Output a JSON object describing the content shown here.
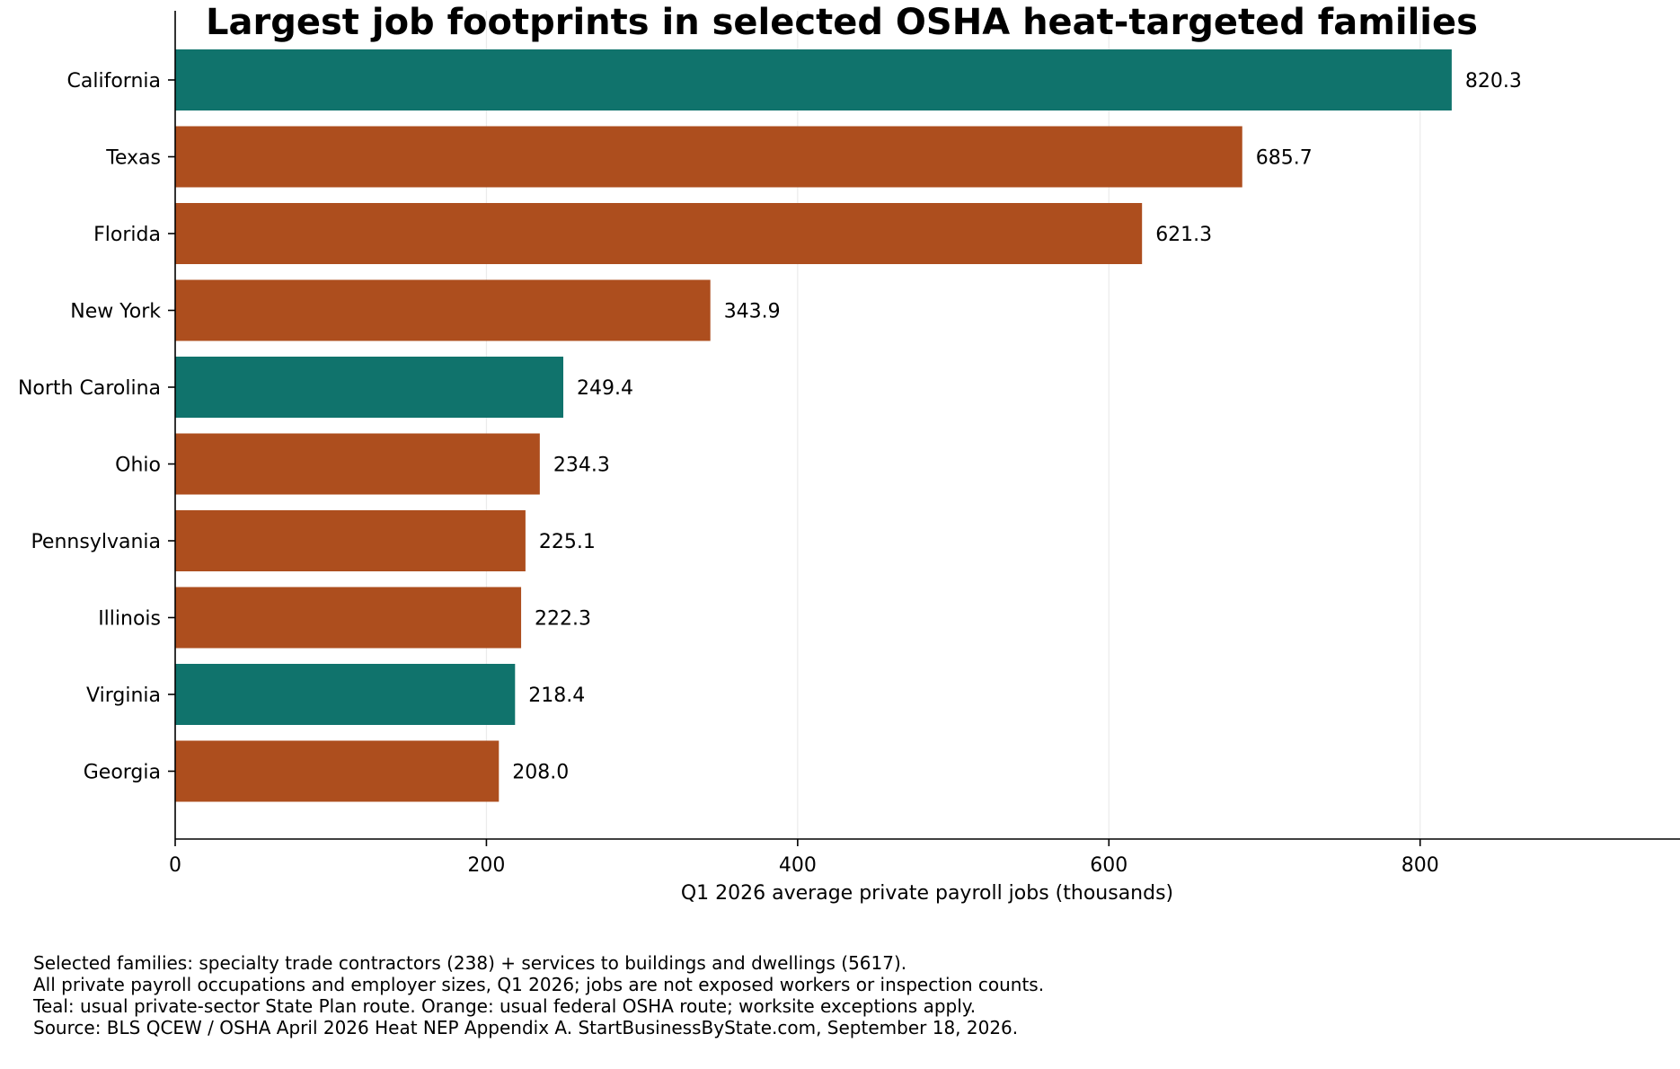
{
  "chart_data": {
    "type": "bar",
    "orientation": "horizontal",
    "title": "Largest job footprints in selected OSHA heat-targeted families",
    "xlabel": "Q1 2026 average private payroll jobs (thousands)",
    "ylabel": "",
    "categories": [
      "California",
      "Texas",
      "Florida",
      "New York",
      "North Carolina",
      "Ohio",
      "Pennsylvania",
      "Illinois",
      "Virginia",
      "Georgia"
    ],
    "values": [
      820.3,
      685.7,
      621.3,
      343.9,
      249.4,
      234.3,
      225.1,
      222.3,
      218.4,
      208.0
    ],
    "value_labels": [
      "820.3",
      "685.7",
      "621.3",
      "343.9",
      "249.4",
      "234.3",
      "225.1",
      "222.3",
      "218.4",
      "208.0"
    ],
    "route": [
      "state",
      "federal",
      "federal",
      "federal",
      "state",
      "federal",
      "federal",
      "federal",
      "state",
      "federal"
    ],
    "xticks": [
      0,
      200,
      400,
      600,
      800
    ],
    "xtick_labels": [
      "0",
      "200",
      "400",
      "600",
      "800"
    ],
    "xlim": [
      0,
      967
    ],
    "grid": "vertical",
    "legend": "none",
    "colors": {
      "state": "#10736c",
      "federal": "#ad4e1e"
    }
  },
  "notes": [
    "Selected families: specialty trade contractors (238) + services to buildings and dwellings (5617).",
    "All private payroll occupations and employer sizes, Q1 2026; jobs are not exposed workers or inspection counts.",
    "Teal: usual private-sector State Plan route. Orange: usual federal OSHA route; worksite exceptions apply.",
    "Source: BLS QCEW / OSHA April 2026 Heat NEP Appendix A. StartBusinessByState.com, September 18, 2026."
  ]
}
